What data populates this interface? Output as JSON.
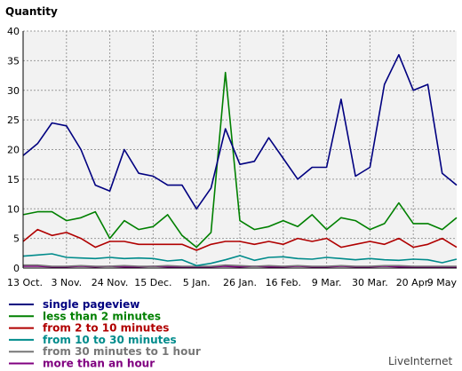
{
  "chart_data": {
    "type": "line",
    "title": "",
    "ylabel": "Quantity",
    "xlabel": "",
    "ylim": [
      0,
      40
    ],
    "yticks": [
      0,
      5,
      10,
      15,
      20,
      25,
      30,
      35,
      40
    ],
    "grid": true,
    "legend_position": "bottom-left",
    "x_tick_labels": [
      {
        "label": "13 Oct.",
        "index": 0
      },
      {
        "label": "3 Nov.",
        "index": 3
      },
      {
        "label": "24 Nov.",
        "index": 6
      },
      {
        "label": "15 Dec.",
        "index": 9
      },
      {
        "label": "5 Jan.",
        "index": 12
      },
      {
        "label": "26 Jan.",
        "index": 15
      },
      {
        "label": "16 Feb.",
        "index": 18
      },
      {
        "label": "9 Mar.",
        "index": 21
      },
      {
        "label": "30 Mar.",
        "index": 24
      },
      {
        "label": "20 Apr.",
        "index": 27
      },
      {
        "label": "9 May",
        "index": 30
      }
    ],
    "series": [
      {
        "name": "single pageview",
        "color": "#000080",
        "values": [
          19,
          21,
          24.5,
          24,
          20,
          14,
          13,
          20,
          16,
          15.5,
          14,
          14,
          10,
          13.5,
          23.5,
          17.5,
          18,
          22,
          18.5,
          15,
          17,
          17,
          28.5,
          15.5,
          17,
          31,
          36,
          30,
          31,
          16,
          14
        ]
      },
      {
        "name": "less than 2 minutes",
        "color": "#008000",
        "values": [
          9,
          9.5,
          9.5,
          8,
          8.5,
          9.5,
          5,
          8,
          6.5,
          7,
          9,
          5.5,
          3.5,
          6,
          33,
          8,
          6.5,
          7,
          8,
          7,
          9,
          6.5,
          8.5,
          8,
          6.5,
          7.5,
          11,
          7.5,
          7.5,
          6.5,
          8.5
        ]
      },
      {
        "name": "from 2 to 10 minutes",
        "color": "#b00000",
        "values": [
          4.5,
          6.5,
          5.5,
          6,
          5,
          3.5,
          4.5,
          4.5,
          4,
          4,
          4,
          4,
          3,
          4,
          4.5,
          4.5,
          4,
          4.5,
          4,
          5,
          4.5,
          5,
          3.5,
          4,
          4.5,
          4,
          5,
          3.5,
          4,
          5,
          3.5
        ]
      },
      {
        "name": "from 10 to 30 minutes",
        "color": "#008b8b",
        "values": [
          2,
          2.2,
          2.4,
          1.8,
          1.7,
          1.6,
          1.8,
          1.6,
          1.7,
          1.6,
          1.2,
          1.4,
          0.4,
          0.8,
          1.4,
          2.1,
          1.3,
          1.8,
          1.9,
          1.6,
          1.5,
          1.8,
          1.6,
          1.4,
          1.6,
          1.4,
          1.3,
          1.5,
          1.4,
          0.9,
          1.5
        ]
      },
      {
        "name": "from 30 minutes to 1 hour",
        "color": "#777777",
        "values": [
          0.5,
          0.5,
          0.3,
          0.3,
          0.4,
          0.3,
          0.3,
          0.4,
          0.3,
          0.3,
          0.4,
          0.3,
          0.3,
          0.3,
          0.5,
          0.4,
          0.3,
          0.4,
          0.3,
          0.4,
          0.3,
          0.3,
          0.4,
          0.3,
          0.3,
          0.4,
          0.4,
          0.3,
          0.3,
          0.3,
          0.3
        ]
      },
      {
        "name": "more than an hour",
        "color": "#800080",
        "values": [
          0.3,
          0.3,
          0.2,
          0.2,
          0.3,
          0.2,
          0.3,
          0.2,
          0.2,
          0.3,
          0.2,
          0.2,
          0.2,
          0.2,
          0.3,
          0.2,
          0.3,
          0.2,
          0.2,
          0.3,
          0.2,
          0.2,
          0.3,
          0.2,
          0.2,
          0.3,
          0.2,
          0.2,
          0.2,
          0.2,
          0.2
        ]
      }
    ]
  },
  "brand": "LiveInternet"
}
